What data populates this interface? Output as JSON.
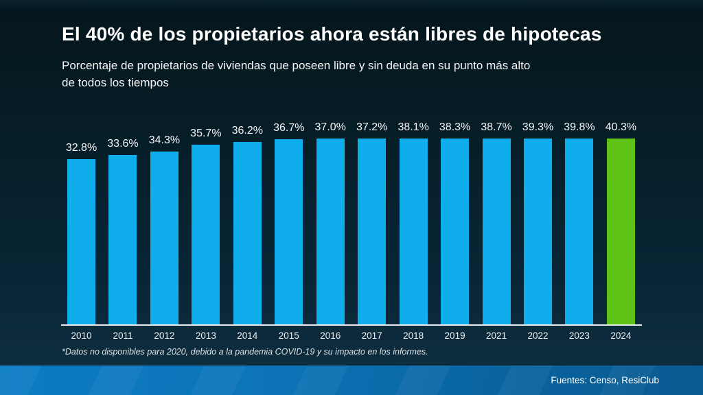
{
  "header": {
    "title": "El 40% de los propietarios ahora están libres de hipotecas",
    "subtitle": "Porcentaje de propietarios de viviendas que poseen libre y sin deuda en su punto más alto\nde todos los tiempos"
  },
  "chart_data": {
    "type": "bar",
    "title": "El 40% de los propietarios ahora están libres de hipotecas",
    "subtitle": "Porcentaje de propietarios de viviendas que poseen libre y sin deuda en su punto más alto de todos los tiempos",
    "categories": [
      "2010",
      "2011",
      "2012",
      "2013",
      "2014",
      "2015",
      "2016",
      "2017",
      "2018",
      "2019",
      "2021",
      "2022",
      "2023",
      "2024"
    ],
    "values": [
      32.8,
      33.6,
      34.3,
      35.7,
      36.2,
      36.7,
      37.0,
      37.2,
      38.1,
      38.3,
      38.7,
      39.3,
      39.8,
      40.3
    ],
    "value_labels": [
      "32.8%",
      "33.6%",
      "34.3%",
      "35.7%",
      "36.2%",
      "36.7%",
      "37.0%",
      "37.2%",
      "38.1%",
      "38.3%",
      "38.7%",
      "39.3%",
      "39.8%",
      "40.3%"
    ],
    "xlabel": "",
    "ylabel": "",
    "ylim": [
      0,
      40.3
    ],
    "grid": false,
    "legend": false,
    "bar_color": "#0fadec",
    "highlight_color": "#5fc217",
    "highlight_index": 13,
    "axis_line_color": "#e9edef",
    "note": "Datos de 2020 no disponibles"
  },
  "footnote": "*Datos no disponibles para 2020, debido a la pandemia COVID-19 y su impacto en los informes.",
  "footer": {
    "source_label": "Fuentes: Censo, ResiClub"
  },
  "colors": {
    "background_top": "#05161f",
    "background_bottom": "#0d2d3f",
    "footer_left": "#0c7cc4",
    "footer_right": "#095a90",
    "text": "#ffffff"
  }
}
